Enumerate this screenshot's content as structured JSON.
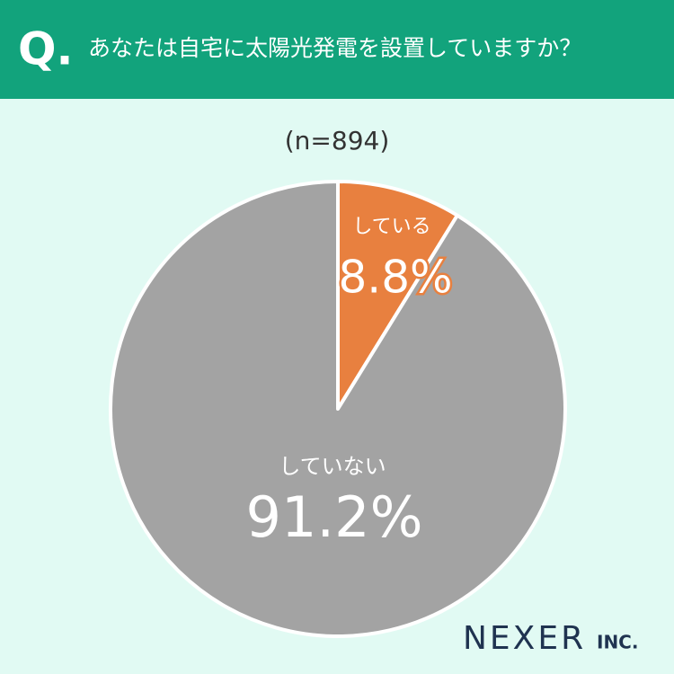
{
  "chart_data": {
    "type": "pie",
    "question_mark": "Q.",
    "title": "あなたは自宅に太陽光発電を設置していますか？",
    "subtitle": "(n=894)",
    "categories": [
      "している",
      "していない"
    ],
    "values": [
      8.8,
      91.2
    ],
    "value_labels": [
      "8.8%",
      "91.2%"
    ],
    "colors": [
      "#e8803f",
      "#a3a3a3"
    ],
    "logo": "NEXER",
    "logo_suffix": "INC."
  }
}
